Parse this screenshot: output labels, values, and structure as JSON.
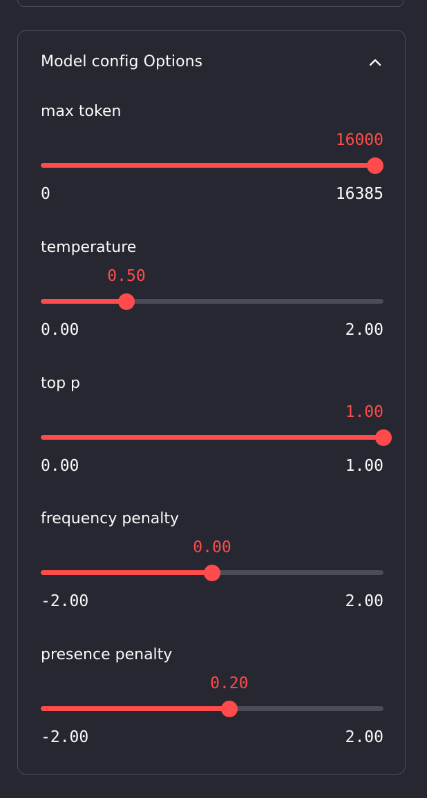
{
  "expander": {
    "title": "Model config Options",
    "chevron_icon": "chevron-up-icon"
  },
  "accent_color": "#ff4b4b",
  "sliders": [
    {
      "label": "max token",
      "value": "16000",
      "min": "0",
      "max": "16385",
      "fraction": 0.9765
    },
    {
      "label": "temperature",
      "value": "0.50",
      "min": "0.00",
      "max": "2.00",
      "fraction": 0.25
    },
    {
      "label": "top p",
      "value": "1.00",
      "min": "0.00",
      "max": "1.00",
      "fraction": 1.0
    },
    {
      "label": "frequency penalty",
      "value": "0.00",
      "min": "-2.00",
      "max": "2.00",
      "fraction": 0.5
    },
    {
      "label": "presence penalty",
      "value": "0.20",
      "min": "-2.00",
      "max": "2.00",
      "fraction": 0.55
    }
  ]
}
